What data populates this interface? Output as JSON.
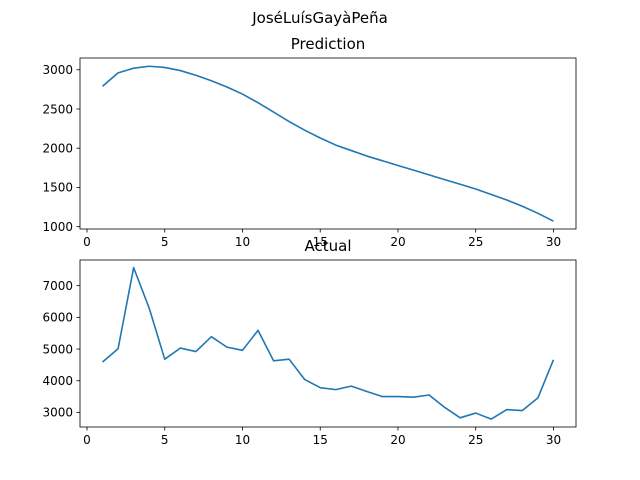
{
  "figure": {
    "suptitle": "JoséLuísGayàPeña"
  },
  "chart_data": [
    {
      "type": "line",
      "title": "Prediction",
      "xlabel": "",
      "ylabel": "",
      "xlim": [
        -0.45,
        31.45
      ],
      "ylim": [
        970,
        3150
      ],
      "xticks": [
        0,
        5,
        10,
        15,
        20,
        25,
        30
      ],
      "yticks": [
        1000,
        1500,
        2000,
        2500,
        3000
      ],
      "grid": false,
      "color": "#1f77b4",
      "x": [
        1,
        2,
        3,
        4,
        5,
        6,
        7,
        8,
        9,
        10,
        11,
        12,
        13,
        14,
        15,
        16,
        17,
        18,
        19,
        20,
        21,
        22,
        23,
        24,
        25,
        26,
        27,
        28,
        29,
        30
      ],
      "y": [
        2790,
        2960,
        3020,
        3045,
        3030,
        2990,
        2930,
        2860,
        2780,
        2690,
        2580,
        2460,
        2340,
        2230,
        2130,
        2040,
        1970,
        1900,
        1840,
        1780,
        1720,
        1660,
        1600,
        1540,
        1480,
        1410,
        1340,
        1260,
        1170,
        1070
      ]
    },
    {
      "type": "line",
      "title": "Actual",
      "xlabel": "",
      "ylabel": "",
      "xlim": [
        -0.45,
        31.45
      ],
      "ylim": [
        2540,
        7810
      ],
      "xticks": [
        0,
        5,
        10,
        15,
        20,
        25,
        30
      ],
      "yticks": [
        3000,
        4000,
        5000,
        6000,
        7000
      ],
      "grid": false,
      "color": "#1f77b4",
      "x": [
        1,
        2,
        3,
        4,
        5,
        6,
        7,
        8,
        9,
        10,
        11,
        12,
        13,
        14,
        15,
        16,
        17,
        18,
        19,
        20,
        21,
        22,
        23,
        24,
        25,
        26,
        27,
        28,
        29,
        30
      ],
      "y": [
        4590,
        5010,
        7570,
        6290,
        4680,
        5030,
        4920,
        5390,
        5060,
        4960,
        5590,
        4630,
        4680,
        4040,
        3780,
        3720,
        3830,
        3660,
        3500,
        3500,
        3480,
        3550,
        3160,
        2830,
        2980,
        2790,
        3090,
        3060,
        3460,
        4660
      ]
    }
  ]
}
